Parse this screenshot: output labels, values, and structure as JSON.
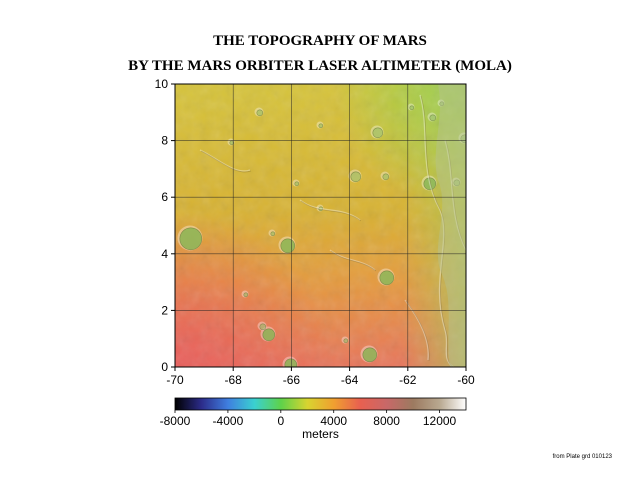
{
  "title_line1": "THE TOPOGRAPHY OF MARS",
  "title_line2": "BY THE MARS ORBITER LASER ALTIMETER (MOLA)",
  "map": {
    "x_range": [
      -70,
      -60
    ],
    "y_range": [
      0,
      10
    ],
    "x_ticks": [
      "-70",
      "-68",
      "-66",
      "-64",
      "-62",
      "-60"
    ],
    "y_ticks": [
      "0",
      "2",
      "4",
      "6",
      "8",
      "10"
    ],
    "grid": true,
    "elevation_colors": {
      "southwest": "#e86a58",
      "center": "#d9b030",
      "north": "#d6c83a",
      "northeast": "#9ed24a"
    }
  },
  "colorbar": {
    "range": [
      -8000,
      14000
    ],
    "tick_labels": [
      "-8000",
      "-4000",
      "0",
      "4000",
      "8000",
      "12000"
    ],
    "label": "meters",
    "stops": [
      "#000000",
      "#2c2c8a",
      "#3f7fe0",
      "#3ad0d0",
      "#5ed24a",
      "#d8d430",
      "#f0a030",
      "#e86050",
      "#c86868",
      "#9c7a60",
      "#b8a890",
      "#ffffff"
    ]
  },
  "source_note": "from Plate grd 010123"
}
